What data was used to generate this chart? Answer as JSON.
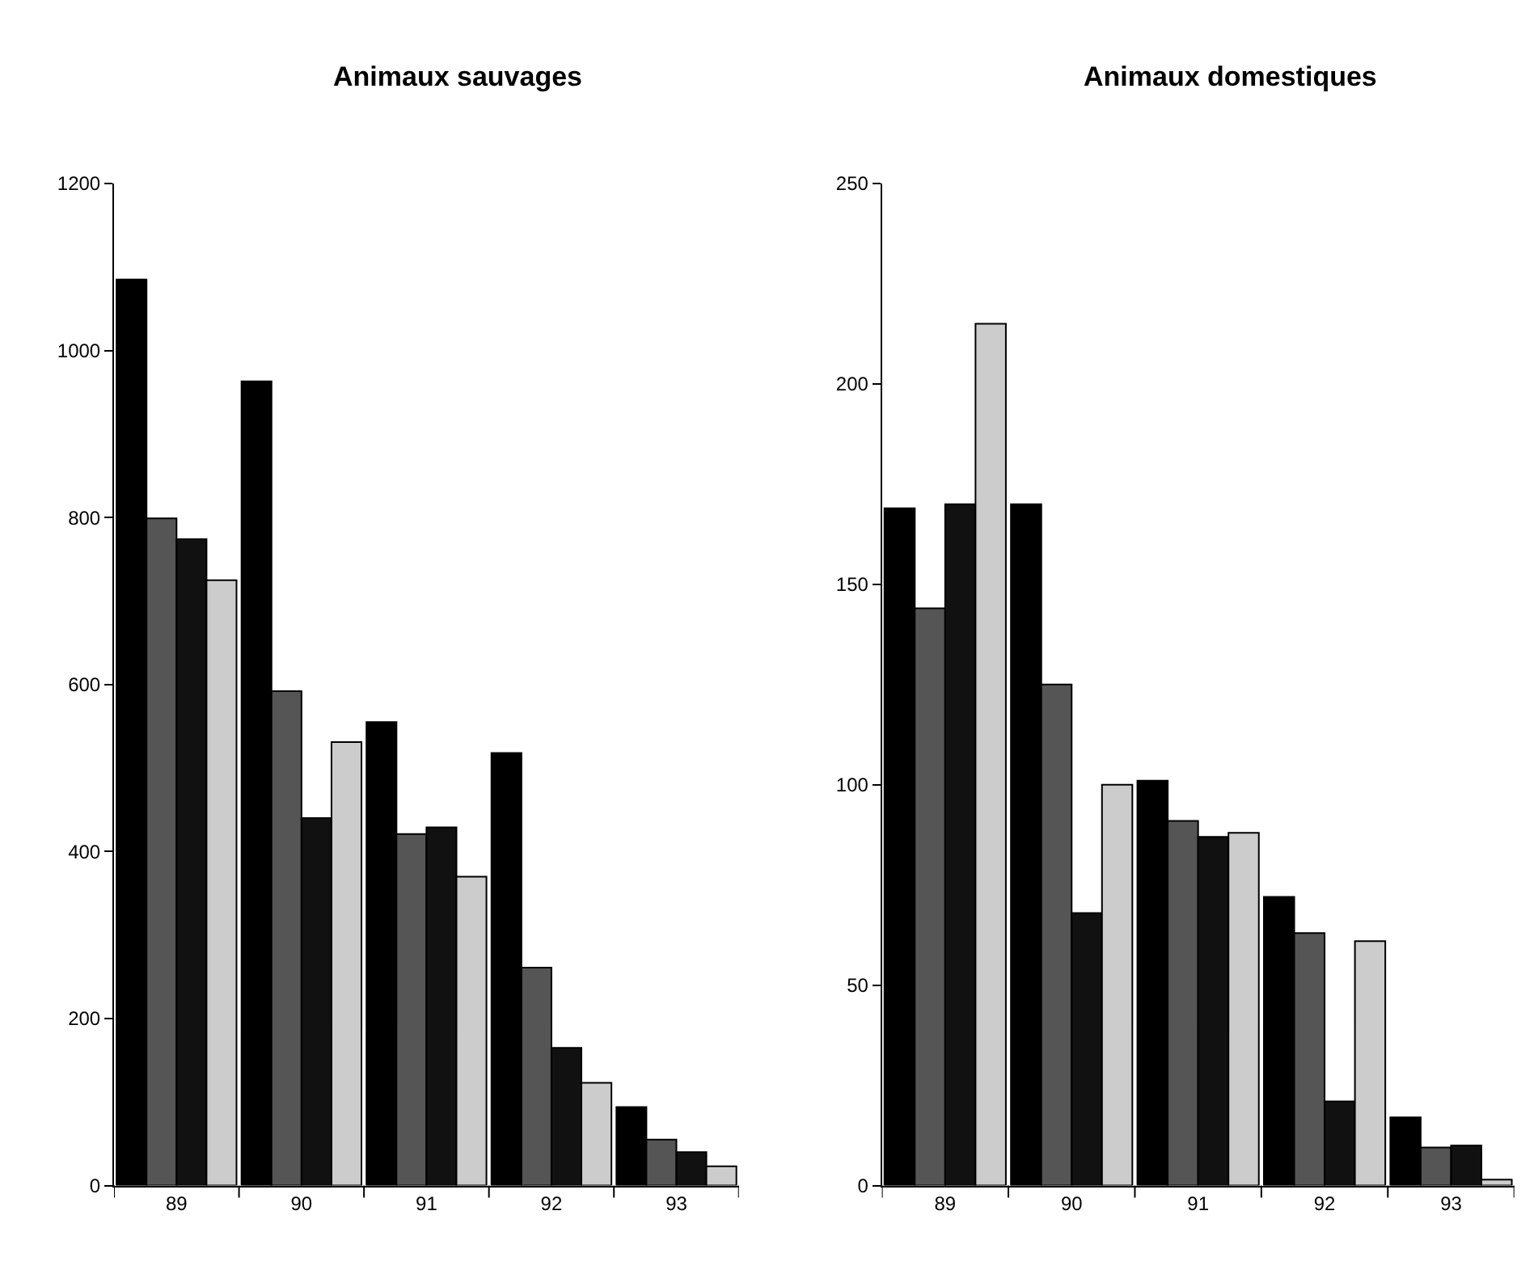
{
  "chart_data": [
    {
      "type": "bar",
      "title": "Animaux sauvages",
      "categories": [
        "89",
        "90",
        "91",
        "92",
        "93"
      ],
      "series": [
        {
          "color": "#000000",
          "values": [
            1085,
            963,
            555,
            518,
            94
          ]
        },
        {
          "color": "#555555",
          "values": [
            799,
            592,
            421,
            261,
            55
          ]
        },
        {
          "color": "#111111",
          "values": [
            774,
            440,
            429,
            165,
            40
          ]
        },
        {
          "color": "#cccccc",
          "values": [
            725,
            531,
            370,
            123,
            23
          ]
        }
      ],
      "ylim": [
        0,
        1200
      ],
      "yticks": [
        0,
        200,
        400,
        600,
        800,
        1000,
        1200
      ]
    },
    {
      "type": "bar",
      "title": "Animaux domestiques",
      "categories": [
        "89",
        "90",
        "91",
        "92",
        "93"
      ],
      "series": [
        {
          "color": "#000000",
          "values": [
            169,
            170,
            101,
            72,
            17
          ]
        },
        {
          "color": "#555555",
          "values": [
            144,
            125,
            91,
            63,
            9.5
          ]
        },
        {
          "color": "#111111",
          "values": [
            170,
            68,
            87,
            21,
            10
          ]
        },
        {
          "color": "#cccccc",
          "values": [
            215,
            100,
            88,
            61,
            1.5
          ]
        }
      ],
      "ylim": [
        0,
        250
      ],
      "yticks": [
        0,
        50,
        100,
        150,
        200,
        250
      ]
    }
  ]
}
